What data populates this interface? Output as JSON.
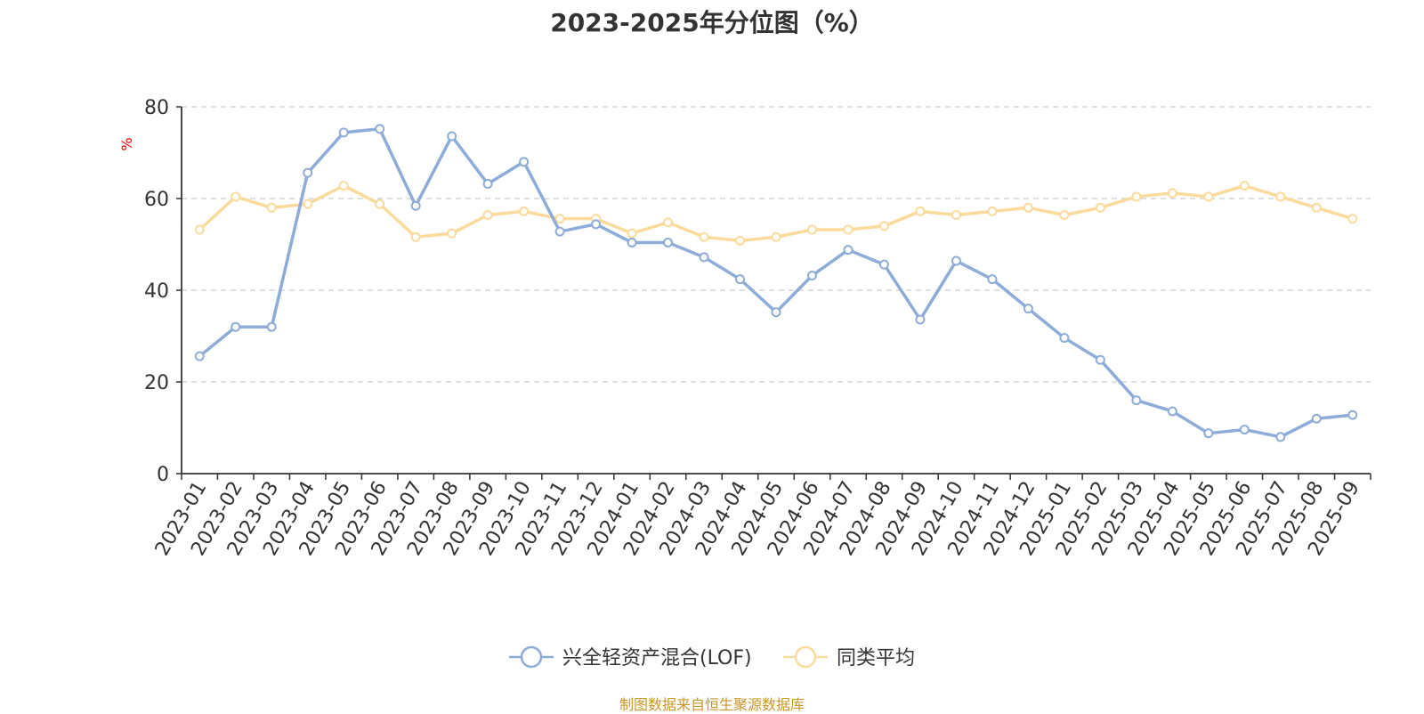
{
  "chart_data": {
    "type": "line",
    "title": "2023-2025年分位图（%）",
    "ylabel": "%",
    "xlabel": "",
    "ylim": [
      0,
      80
    ],
    "yticks": [
      0,
      20,
      40,
      60,
      80
    ],
    "grid": true,
    "legend_position": "bottom",
    "categories": [
      "2023-01",
      "2023-02",
      "2023-03",
      "2023-04",
      "2023-05",
      "2023-06",
      "2023-07",
      "2023-08",
      "2023-09",
      "2023-10",
      "2023-11",
      "2023-12",
      "2024-01",
      "2024-02",
      "2024-03",
      "2024-04",
      "2024-05",
      "2024-06",
      "2024-07",
      "2024-08",
      "2024-09",
      "2024-10",
      "2024-11",
      "2024-12",
      "2025-01",
      "2025-02",
      "2025-03",
      "2025-04",
      "2025-05",
      "2025-06",
      "2025-07",
      "2025-08",
      "2025-09"
    ],
    "series": [
      {
        "name": "兴全轻资产混合(LOF)",
        "color": "#8eacd8",
        "values": [
          25.6,
          32.0,
          32.0,
          65.6,
          74.4,
          75.2,
          58.4,
          73.6,
          63.2,
          68.0,
          52.8,
          54.4,
          50.4,
          50.4,
          47.2,
          42.4,
          35.2,
          43.2,
          48.8,
          45.6,
          33.6,
          46.4,
          42.4,
          36.0,
          29.6,
          24.8,
          16.0,
          13.6,
          8.8,
          9.6,
          8.0,
          12.0,
          12.8
        ]
      },
      {
        "name": "同类平均",
        "color": "#fbdb9c",
        "values": [
          53.2,
          60.4,
          58.0,
          58.8,
          62.8,
          58.8,
          51.6,
          52.4,
          56.4,
          57.2,
          55.6,
          55.6,
          52.4,
          54.8,
          51.6,
          50.8,
          51.6,
          53.2,
          53.2,
          54.0,
          57.2,
          56.4,
          57.2,
          58.0,
          56.4,
          58.0,
          60.4,
          61.2,
          60.4,
          62.8,
          60.4,
          58.0,
          55.6
        ]
      }
    ]
  },
  "footer": {
    "source": "制图数据来自恒生聚源数据库",
    "source_color": "#c9962a"
  },
  "colors": {
    "title": "#333333",
    "axis": "#333333",
    "grid": "#cccccc",
    "ylabel": "#e60000"
  }
}
